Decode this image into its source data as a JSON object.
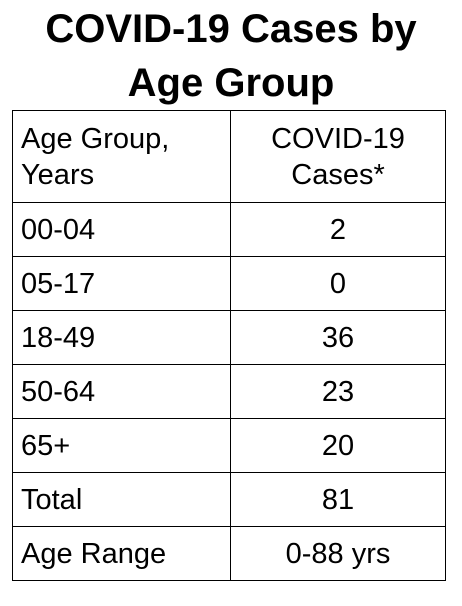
{
  "title": {
    "line1": "COVID-19 Cases by",
    "line2": "Age Group"
  },
  "table": {
    "headers": [
      [
        "Age Group,",
        "Years"
      ],
      [
        "COVID-19",
        "Cases*"
      ]
    ],
    "rows": [
      [
        "00-04",
        "2"
      ],
      [
        "05-17",
        "0"
      ],
      [
        "18-49",
        "36"
      ],
      [
        "50-64",
        "23"
      ],
      [
        "65+",
        "20"
      ],
      [
        "Total",
        "81"
      ],
      [
        "Age Range",
        "0-88 yrs"
      ]
    ]
  }
}
